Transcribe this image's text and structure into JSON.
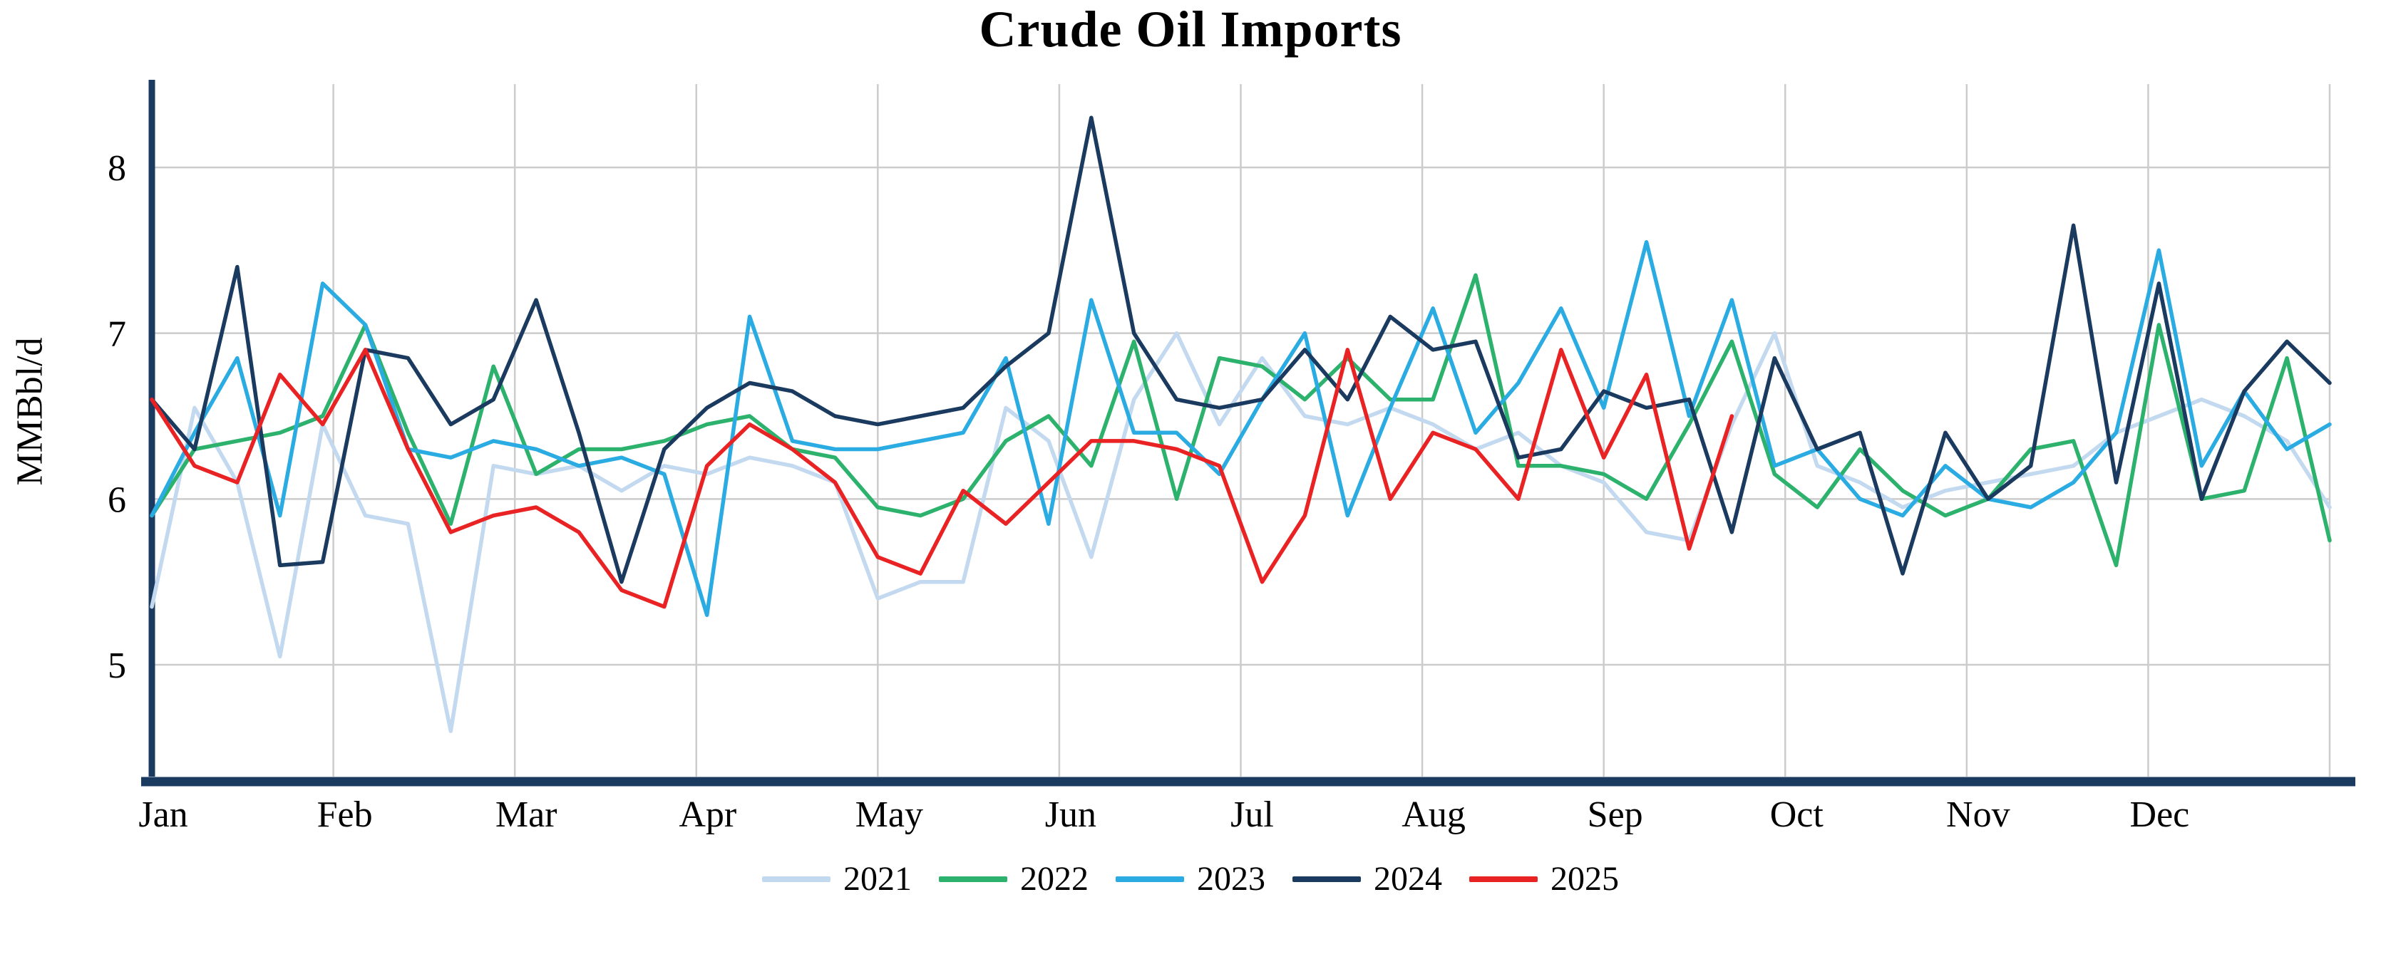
{
  "chart_data": {
    "type": "line",
    "title": "Crude Oil Imports",
    "ylabel": "MMBbl/d",
    "months": [
      "Jan",
      "Feb",
      "Mar",
      "Apr",
      "May",
      "Jun",
      "Jul",
      "Aug",
      "Sep",
      "Oct",
      "Nov",
      "Dec"
    ],
    "yticks": [
      5,
      6,
      7,
      8
    ],
    "ylim": [
      4.3,
      8.55
    ],
    "weeks_per_year": 52,
    "grid": true,
    "legend_position": "bottom",
    "colors": {
      "grid": "#cccccc",
      "axis": "#1b3a5f"
    },
    "series": [
      {
        "name": "2021",
        "color": "#c2d9ef",
        "values": [
          5.35,
          6.55,
          6.1,
          5.05,
          6.45,
          5.9,
          5.85,
          4.6,
          6.2,
          6.15,
          6.2,
          6.05,
          6.2,
          6.15,
          6.25,
          6.2,
          6.1,
          5.4,
          5.5,
          5.5,
          6.55,
          6.35,
          5.65,
          6.6,
          7.0,
          6.45,
          6.85,
          6.5,
          6.45,
          6.55,
          6.45,
          6.3,
          6.4,
          6.2,
          6.1,
          5.8,
          5.75,
          6.45,
          7.0,
          6.2,
          6.1,
          5.95,
          6.05,
          6.1,
          6.15,
          6.2,
          6.4,
          6.5,
          6.6,
          6.5,
          6.35,
          5.95
        ]
      },
      {
        "name": "2022",
        "color": "#2cb26c",
        "values": [
          5.9,
          6.3,
          6.35,
          6.4,
          6.5,
          7.05,
          6.4,
          5.85,
          6.8,
          6.15,
          6.3,
          6.3,
          6.35,
          6.45,
          6.5,
          6.3,
          6.25,
          5.95,
          5.9,
          6.0,
          6.35,
          6.5,
          6.2,
          6.95,
          6.0,
          6.85,
          6.8,
          6.6,
          6.85,
          6.6,
          6.6,
          7.35,
          6.2,
          6.2,
          6.15,
          6.0,
          6.45,
          6.95,
          6.15,
          5.95,
          6.3,
          6.05,
          5.9,
          6.0,
          6.3,
          6.35,
          5.6,
          7.05,
          6.0,
          6.05,
          6.85,
          5.75
        ]
      },
      {
        "name": "2023",
        "color": "#2aabe2",
        "values": [
          5.9,
          6.4,
          6.85,
          5.9,
          7.3,
          7.05,
          6.3,
          6.25,
          6.35,
          6.3,
          6.2,
          6.25,
          6.15,
          5.3,
          7.1,
          6.35,
          6.3,
          6.3,
          6.35,
          6.4,
          6.85,
          5.85,
          7.2,
          6.4,
          6.4,
          6.15,
          6.6,
          7.0,
          5.9,
          6.55,
          7.15,
          6.4,
          6.7,
          7.15,
          6.55,
          7.55,
          6.5,
          7.2,
          6.2,
          6.3,
          6.0,
          5.9,
          6.2,
          6.0,
          5.95,
          6.1,
          6.4,
          7.5,
          6.2,
          6.65,
          6.3,
          6.45
        ]
      },
      {
        "name": "2024",
        "color": "#1b3a5f",
        "values": [
          6.6,
          6.3,
          7.4,
          5.6,
          5.62,
          6.9,
          6.85,
          6.45,
          6.6,
          7.2,
          6.4,
          5.5,
          6.3,
          6.55,
          6.7,
          6.65,
          6.5,
          6.45,
          6.5,
          6.55,
          6.8,
          7.0,
          8.3,
          7.0,
          6.6,
          6.55,
          6.6,
          6.9,
          6.6,
          7.1,
          6.9,
          6.95,
          6.25,
          6.3,
          6.65,
          6.55,
          6.6,
          5.8,
          6.85,
          6.3,
          6.4,
          5.55,
          6.4,
          6.0,
          6.2,
          7.65,
          6.1,
          7.3,
          6.0,
          6.65,
          6.95,
          6.7
        ]
      },
      {
        "name": "2025",
        "color": "#e92223",
        "values": [
          6.6,
          6.2,
          6.1,
          6.75,
          6.45,
          6.9,
          6.3,
          5.8,
          5.9,
          5.95,
          5.8,
          5.45,
          5.35,
          6.2,
          6.45,
          6.3,
          6.1,
          5.65,
          5.55,
          6.05,
          5.85,
          6.1,
          6.35,
          6.35,
          6.3,
          6.2,
          5.5,
          5.9,
          6.9,
          6.0,
          6.4,
          6.3,
          6.0,
          6.9,
          6.25,
          6.75,
          5.7,
          6.5
        ]
      }
    ]
  }
}
